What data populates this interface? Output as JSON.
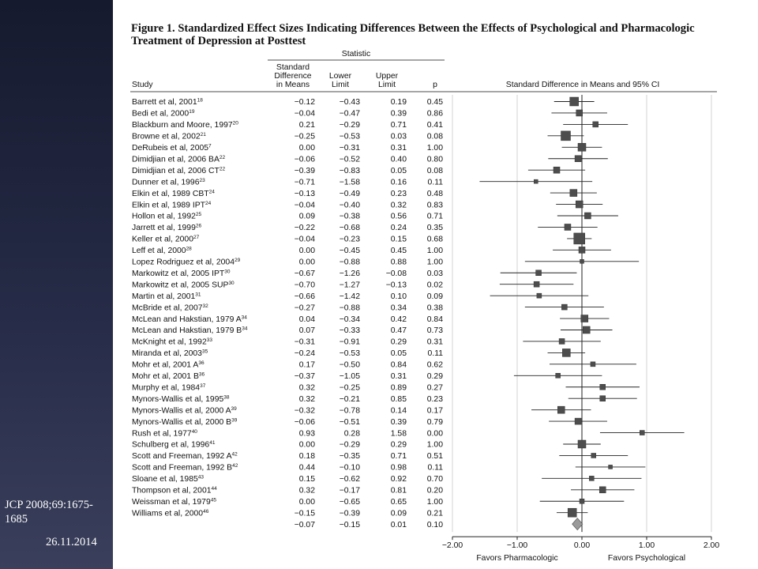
{
  "slide": {
    "caption": "JCP 2008;69:1675-1685",
    "date": "26.11.2014"
  },
  "colors": {
    "marker": "#4d4d4d",
    "summary": "#9a9a9a",
    "grid": "#d3d3d3"
  },
  "chart_data": {
    "type": "forest",
    "title": "Figure 1. Standardized Effect Sizes Indicating Differences Between the Effects of Psychological and Pharmacologic Treatment of Depression at Posttest",
    "headers": {
      "statistic": "Statistic",
      "study": "Study",
      "smd": "Standard Difference in Means",
      "lower": "Lower Limit",
      "upper": "Upper Limit",
      "p": "p",
      "plot": "Standard Difference in Means and 95% CI"
    },
    "xlim": [
      -2.0,
      2.0
    ],
    "x_ticks": [
      -2.0,
      -1.0,
      0.0,
      1.0,
      2.0
    ],
    "x_tick_labels": [
      "−2.00",
      "−1.00",
      "0.00",
      "1.00",
      "2.00"
    ],
    "favors_left": "Favors Pharmacologic",
    "favors_right": "Favors Psychological",
    "studies": [
      {
        "name": "Barrett et al, 2001",
        "ref": "18",
        "smd": -0.12,
        "lower": -0.43,
        "upper": 0.19,
        "p": 0.45,
        "smd_t": "−0.12",
        "lower_t": "−0.43",
        "upper_t": "0.19",
        "p_t": "0.45",
        "weight": 11
      },
      {
        "name": "Bedi et al, 2000",
        "ref": "19",
        "smd": -0.04,
        "lower": -0.47,
        "upper": 0.39,
        "p": 0.86,
        "smd_t": "−0.04",
        "lower_t": "−0.47",
        "upper_t": "0.39",
        "p_t": "0.86",
        "weight": 8
      },
      {
        "name": "Blackburn and Moore, 1997",
        "ref": "20",
        "smd": 0.21,
        "lower": -0.29,
        "upper": 0.71,
        "p": 0.41,
        "smd_t": "0.21",
        "lower_t": "−0.29",
        "upper_t": "0.71",
        "p_t": "0.41",
        "weight": 7
      },
      {
        "name": "Browne et al, 2002",
        "ref": "21",
        "smd": -0.25,
        "lower": -0.53,
        "upper": 0.03,
        "p": 0.08,
        "smd_t": "−0.25",
        "lower_t": "−0.53",
        "upper_t": "0.03",
        "p_t": "0.08",
        "weight": 12
      },
      {
        "name": "DeRubeis et al, 2005",
        "ref": "7",
        "smd": 0.0,
        "lower": -0.31,
        "upper": 0.31,
        "p": 1.0,
        "smd_t": "0.00",
        "lower_t": "−0.31",
        "upper_t": "0.31",
        "p_t": "1.00",
        "weight": 10
      },
      {
        "name": "Dimidjian et al, 2006 BA",
        "ref": "22",
        "smd": -0.06,
        "lower": -0.52,
        "upper": 0.4,
        "p": 0.8,
        "smd_t": "−0.06",
        "lower_t": "−0.52",
        "upper_t": "0.40",
        "p_t": "0.80",
        "weight": 8
      },
      {
        "name": "Dimidjian et al, 2006 CT",
        "ref": "22",
        "smd": -0.39,
        "lower": -0.83,
        "upper": 0.05,
        "p": 0.08,
        "smd_t": "−0.39",
        "lower_t": "−0.83",
        "upper_t": "0.05",
        "p_t": "0.08",
        "weight": 8
      },
      {
        "name": "Dunner et al, 1996",
        "ref": "23",
        "smd": -0.71,
        "lower": -1.58,
        "upper": 0.16,
        "p": 0.11,
        "smd_t": "−0.71",
        "lower_t": "−1.58",
        "upper_t": "0.16",
        "p_t": "0.11",
        "weight": 5
      },
      {
        "name": "Elkin et al, 1989 CBT",
        "ref": "24",
        "smd": -0.13,
        "lower": -0.49,
        "upper": 0.23,
        "p": 0.48,
        "smd_t": "−0.13",
        "lower_t": "−0.49",
        "upper_t": "0.23",
        "p_t": "0.48",
        "weight": 9
      },
      {
        "name": "Elkin et al, 1989 IPT",
        "ref": "24",
        "smd": -0.04,
        "lower": -0.4,
        "upper": 0.32,
        "p": 0.83,
        "smd_t": "−0.04",
        "lower_t": "−0.40",
        "upper_t": "0.32",
        "p_t": "0.83",
        "weight": 9
      },
      {
        "name": "Hollon et al, 1992",
        "ref": "25",
        "smd": 0.09,
        "lower": -0.38,
        "upper": 0.56,
        "p": 0.71,
        "smd_t": "0.09",
        "lower_t": "−0.38",
        "upper_t": "0.56",
        "p_t": "0.71",
        "weight": 8
      },
      {
        "name": "Jarrett et al, 1999",
        "ref": "26",
        "smd": -0.22,
        "lower": -0.68,
        "upper": 0.24,
        "p": 0.35,
        "smd_t": "−0.22",
        "lower_t": "−0.68",
        "upper_t": "0.24",
        "p_t": "0.35",
        "weight": 8
      },
      {
        "name": "Keller et al, 2000",
        "ref": "27",
        "smd": -0.04,
        "lower": -0.23,
        "upper": 0.15,
        "p": 0.68,
        "smd_t": "−0.04",
        "lower_t": "−0.23",
        "upper_t": "0.15",
        "p_t": "0.68",
        "weight": 14
      },
      {
        "name": "Leff et al, 2000",
        "ref": "28",
        "smd": 0.0,
        "lower": -0.45,
        "upper": 0.45,
        "p": 1.0,
        "smd_t": "0.00",
        "lower_t": "−0.45",
        "upper_t": "0.45",
        "p_t": "1.00",
        "weight": 8
      },
      {
        "name": "Lopez Rodriguez et al, 2004",
        "ref": "29",
        "smd": 0.0,
        "lower": -0.88,
        "upper": 0.88,
        "p": 1.0,
        "smd_t": "0.00",
        "lower_t": "−0.88",
        "upper_t": "0.88",
        "p_t": "1.00",
        "weight": 5
      },
      {
        "name": "Markowitz et al, 2005 IPT",
        "ref": "30",
        "smd": -0.67,
        "lower": -1.26,
        "upper": -0.08,
        "p": 0.03,
        "smd_t": "−0.67",
        "lower_t": "−1.26",
        "upper_t": "−0.08",
        "p_t": "0.03",
        "weight": 7
      },
      {
        "name": "Markowitz et al, 2005 SUP",
        "ref": "30",
        "smd": -0.7,
        "lower": -1.27,
        "upper": -0.13,
        "p": 0.02,
        "smd_t": "−0.70",
        "lower_t": "−1.27",
        "upper_t": "−0.13",
        "p_t": "0.02",
        "weight": 7
      },
      {
        "name": "Martin et al, 2001",
        "ref": "31",
        "smd": -0.66,
        "lower": -1.42,
        "upper": 0.1,
        "p": 0.09,
        "smd_t": "−0.66",
        "lower_t": "−1.42",
        "upper_t": "0.10",
        "p_t": "0.09",
        "weight": 6
      },
      {
        "name": "McBride et al, 2007",
        "ref": "32",
        "smd": -0.27,
        "lower": -0.88,
        "upper": 0.34,
        "p": 0.38,
        "smd_t": "−0.27",
        "lower_t": "−0.88",
        "upper_t": "0.34",
        "p_t": "0.38",
        "weight": 7
      },
      {
        "name": "McLean and Hakstian, 1979 A",
        "ref": "34",
        "smd": 0.04,
        "lower": -0.34,
        "upper": 0.42,
        "p": 0.84,
        "smd_t": "0.04",
        "lower_t": "−0.34",
        "upper_t": "0.42",
        "p_t": "0.84",
        "weight": 9
      },
      {
        "name": "McLean and Hakstian, 1979 B",
        "ref": "34",
        "smd": 0.07,
        "lower": -0.33,
        "upper": 0.47,
        "p": 0.73,
        "smd_t": "0.07",
        "lower_t": "−0.33",
        "upper_t": "0.47",
        "p_t": "0.73",
        "weight": 9
      },
      {
        "name": "McKnight et al, 1992",
        "ref": "33",
        "smd": -0.31,
        "lower": -0.91,
        "upper": 0.29,
        "p": 0.31,
        "smd_t": "−0.31",
        "lower_t": "−0.91",
        "upper_t": "0.29",
        "p_t": "0.31",
        "weight": 7
      },
      {
        "name": "Miranda et al, 2003",
        "ref": "35",
        "smd": -0.24,
        "lower": -0.53,
        "upper": 0.05,
        "p": 0.11,
        "smd_t": "−0.24",
        "lower_t": "−0.53",
        "upper_t": "0.05",
        "p_t": "0.11",
        "weight": 10
      },
      {
        "name": "Mohr et al, 2001 A",
        "ref": "36",
        "smd": 0.17,
        "lower": -0.5,
        "upper": 0.84,
        "p": 0.62,
        "smd_t": "0.17",
        "lower_t": "−0.50",
        "upper_t": "0.84",
        "p_t": "0.62",
        "weight": 6
      },
      {
        "name": "Mohr et al, 2001 B",
        "ref": "36",
        "smd": -0.37,
        "lower": -1.05,
        "upper": 0.31,
        "p": 0.29,
        "smd_t": "−0.37",
        "lower_t": "−1.05",
        "upper_t": "0.31",
        "p_t": "0.29",
        "weight": 6
      },
      {
        "name": "Murphy et al, 1984",
        "ref": "37",
        "smd": 0.32,
        "lower": -0.25,
        "upper": 0.89,
        "p": 0.27,
        "smd_t": "0.32",
        "lower_t": "−0.25",
        "upper_t": "0.89",
        "p_t": "0.27",
        "weight": 7
      },
      {
        "name": "Mynors-Wallis et al, 1995",
        "ref": "38",
        "smd": 0.32,
        "lower": -0.21,
        "upper": 0.85,
        "p": 0.23,
        "smd_t": "0.32",
        "lower_t": "−0.21",
        "upper_t": "0.85",
        "p_t": "0.23",
        "weight": 7
      },
      {
        "name": "Mynors-Wallis et al, 2000 A",
        "ref": "39",
        "smd": -0.32,
        "lower": -0.78,
        "upper": 0.14,
        "p": 0.17,
        "smd_t": "−0.32",
        "lower_t": "−0.78",
        "upper_t": "0.14",
        "p_t": "0.17",
        "weight": 9
      },
      {
        "name": "Mynors-Wallis et al, 2000 B",
        "ref": "39",
        "smd": -0.06,
        "lower": -0.51,
        "upper": 0.39,
        "p": 0.79,
        "smd_t": "−0.06",
        "lower_t": "−0.51",
        "upper_t": "0.39",
        "p_t": "0.79",
        "weight": 8
      },
      {
        "name": "Rush et al, 1977",
        "ref": "40",
        "smd": 0.93,
        "lower": 0.28,
        "upper": 1.58,
        "p": 0.0,
        "smd_t": "0.93",
        "lower_t": "0.28",
        "upper_t": "1.58",
        "p_t": "0.00",
        "weight": 6
      },
      {
        "name": "Schulberg et al, 1996",
        "ref": "41",
        "smd": 0.0,
        "lower": -0.29,
        "upper": 0.29,
        "p": 1.0,
        "smd_t": "0.00",
        "lower_t": "−0.29",
        "upper_t": "0.29",
        "p_t": "1.00",
        "weight": 10
      },
      {
        "name": "Scott and Freeman, 1992 A",
        "ref": "42",
        "smd": 0.18,
        "lower": -0.35,
        "upper": 0.71,
        "p": 0.51,
        "smd_t": "0.18",
        "lower_t": "−0.35",
        "upper_t": "0.71",
        "p_t": "0.51",
        "weight": 6
      },
      {
        "name": "Scott and Freeman, 1992 B",
        "ref": "42",
        "smd": 0.44,
        "lower": -0.1,
        "upper": 0.98,
        "p": 0.11,
        "smd_t": "0.44",
        "lower_t": "−0.10",
        "upper_t": "0.98",
        "p_t": "0.11",
        "weight": 5
      },
      {
        "name": "Sloane et al, 1985",
        "ref": "43",
        "smd": 0.15,
        "lower": -0.62,
        "upper": 0.92,
        "p": 0.7,
        "smd_t": "0.15",
        "lower_t": "−0.62",
        "upper_t": "0.92",
        "p_t": "0.70",
        "weight": 6
      },
      {
        "name": "Thompson et al, 2001",
        "ref": "44",
        "smd": 0.32,
        "lower": -0.17,
        "upper": 0.81,
        "p": 0.2,
        "smd_t": "0.32",
        "lower_t": "−0.17",
        "upper_t": "0.81",
        "p_t": "0.20",
        "weight": 8
      },
      {
        "name": "Weissman et al, 1979",
        "ref": "45",
        "smd": 0.0,
        "lower": -0.65,
        "upper": 0.65,
        "p": 1.0,
        "smd_t": "0.00",
        "lower_t": "−0.65",
        "upper_t": "0.65",
        "p_t": "1.00",
        "weight": 6
      },
      {
        "name": "Williams et al, 2000",
        "ref": "46",
        "smd": -0.15,
        "lower": -0.39,
        "upper": 0.09,
        "p": 0.21,
        "smd_t": "−0.15",
        "lower_t": "−0.39",
        "upper_t": "0.09",
        "p_t": "0.21",
        "weight": 11
      }
    ],
    "summary": {
      "smd": -0.07,
      "lower": -0.15,
      "upper": 0.01,
      "p": 0.1,
      "smd_t": "−0.07",
      "lower_t": "−0.15",
      "upper_t": "0.01",
      "p_t": "0.10"
    }
  }
}
